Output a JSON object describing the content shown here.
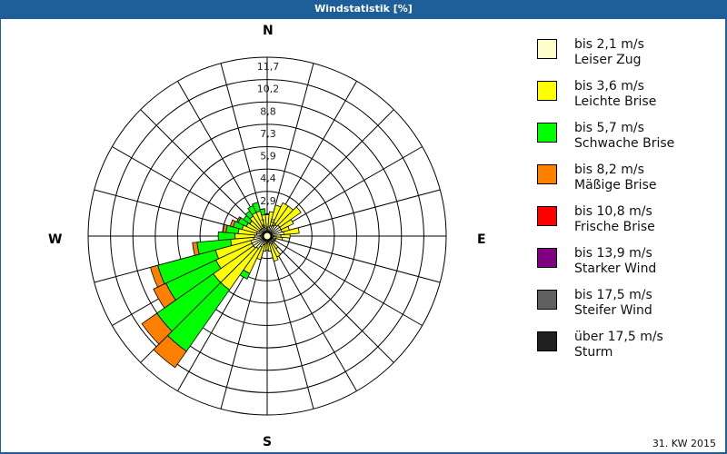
{
  "window": {
    "title": "Windstatistik [%]"
  },
  "compass": {
    "north": "N",
    "east": "E",
    "south": "S",
    "west": "W"
  },
  "footer": {
    "period": "31. KW 2015"
  },
  "legend": [
    {
      "range": "bis 2,1 m/s",
      "name": "Leiser Zug",
      "color": "#ffffcc"
    },
    {
      "range": "bis 3,6 m/s",
      "name": "Leichte Brise",
      "color": "#ffff00"
    },
    {
      "range": "bis 5,7 m/s",
      "name": "Schwache Brise",
      "color": "#00ff00"
    },
    {
      "range": "bis 8,2 m/s",
      "name": "Mäßige Brise",
      "color": "#ff8000"
    },
    {
      "range": "bis 10,8 m/s",
      "name": "Frische Brise",
      "color": "#ff0000"
    },
    {
      "range": "bis 13,9 m/s",
      "name": "Starker Wind",
      "color": "#800080"
    },
    {
      "range": "bis 17,5 m/s",
      "name": "Steifer Wind",
      "color": "#606060"
    },
    {
      "range": "über 17,5 m/s",
      "name": "Sturm",
      "color": "#202020"
    }
  ],
  "chart_data": {
    "type": "windrose",
    "title": "Windstatistik [%]",
    "subtitle": "31. KW 2015",
    "unit": "%",
    "radial_ticks": [
      "1,5",
      "2,9",
      "4,4",
      "5,9",
      "7,3",
      "8,8",
      "10,2",
      "11,7"
    ],
    "radial_max": 11.7,
    "sector_width_deg": 10,
    "series_names": [
      "bis 2,1 m/s",
      "bis 3,6 m/s",
      "bis 5,7 m/s",
      "bis 8,2 m/s",
      "bis 10,8 m/s",
      "bis 13,9 m/s",
      "bis 17,5 m/s",
      "über 17,5 m/s"
    ],
    "sectors": [
      {
        "dir": 0,
        "values": [
          0.6,
          0.8,
          0,
          0,
          0,
          0,
          0,
          0
        ]
      },
      {
        "dir": 10,
        "values": [
          0.6,
          1.0,
          0,
          0,
          0,
          0,
          0,
          0
        ]
      },
      {
        "dir": 20,
        "values": [
          0.7,
          1.4,
          0,
          0,
          0,
          0,
          0,
          0
        ]
      },
      {
        "dir": 30,
        "values": [
          0.8,
          1.6,
          0,
          0,
          0,
          0,
          0,
          0
        ]
      },
      {
        "dir": 40,
        "values": [
          0.9,
          1.5,
          0,
          0,
          0,
          0,
          0,
          0
        ]
      },
      {
        "dir": 50,
        "values": [
          1.0,
          1.7,
          0,
          0,
          0,
          0,
          0,
          0
        ]
      },
      {
        "dir": 60,
        "values": [
          1.0,
          0.9,
          0,
          0,
          0,
          0,
          0,
          0
        ]
      },
      {
        "dir": 70,
        "values": [
          1.0,
          0.5,
          0,
          0,
          0,
          0,
          0,
          0
        ]
      },
      {
        "dir": 80,
        "values": [
          1.1,
          1.0,
          0,
          0,
          0,
          0,
          0,
          0
        ]
      },
      {
        "dir": 90,
        "values": [
          0.9,
          0.6,
          0,
          0,
          0,
          0,
          0,
          0
        ]
      },
      {
        "dir": 100,
        "values": [
          0.6,
          0.4,
          0,
          0,
          0,
          0,
          0,
          0
        ]
      },
      {
        "dir": 110,
        "values": [
          0.4,
          0.2,
          0,
          0,
          0,
          0,
          0,
          0
        ]
      },
      {
        "dir": 120,
        "values": [
          0.3,
          0.2,
          0,
          0,
          0,
          0,
          0,
          0
        ]
      },
      {
        "dir": 130,
        "values": [
          0.3,
          0.3,
          0,
          0,
          0,
          0,
          0,
          0
        ]
      },
      {
        "dir": 140,
        "values": [
          0.5,
          0.5,
          0,
          0,
          0,
          0,
          0,
          0
        ]
      },
      {
        "dir": 150,
        "values": [
          0.6,
          0.9,
          0,
          0,
          0,
          0,
          0,
          0
        ]
      },
      {
        "dir": 160,
        "values": [
          0.5,
          1.2,
          0,
          0,
          0,
          0,
          0,
          0
        ]
      },
      {
        "dir": 170,
        "values": [
          0.4,
          0.6,
          0,
          0,
          0,
          0,
          0,
          0
        ]
      },
      {
        "dir": 180,
        "values": [
          0.4,
          0.5,
          0,
          0,
          0,
          0,
          0,
          0
        ]
      },
      {
        "dir": 190,
        "values": [
          0.5,
          0.5,
          0,
          0,
          0,
          0,
          0,
          0
        ]
      },
      {
        "dir": 200,
        "values": [
          0.6,
          1.0,
          0,
          0,
          0,
          0,
          0,
          0
        ]
      },
      {
        "dir": 210,
        "values": [
          0.8,
          1.9,
          0.4,
          0,
          0,
          0,
          0,
          0
        ]
      },
      {
        "dir": 220,
        "values": [
          1.0,
          3.3,
          4.9,
          1.3,
          0,
          0,
          0,
          0
        ]
      },
      {
        "dir": 230,
        "values": [
          1.1,
          3.2,
          4.5,
          1.2,
          0,
          0,
          0,
          0
        ]
      },
      {
        "dir": 240,
        "values": [
          1.1,
          2.6,
          3.6,
          0.9,
          0,
          0,
          0,
          0
        ]
      },
      {
        "dir": 250,
        "values": [
          1.1,
          2.4,
          3.9,
          0.5,
          0,
          0,
          0,
          0
        ]
      },
      {
        "dir": 260,
        "values": [
          0.9,
          1.5,
          2.2,
          0.3,
          0,
          0,
          0,
          0
        ]
      },
      {
        "dir": 270,
        "values": [
          0.8,
          1.3,
          1.1,
          0,
          0,
          0,
          0,
          0
        ]
      },
      {
        "dir": 280,
        "values": [
          0.7,
          1.2,
          0.8,
          0.2,
          0,
          0,
          0,
          0
        ]
      },
      {
        "dir": 290,
        "values": [
          0.7,
          1.0,
          0.6,
          0.2,
          0,
          0,
          0,
          0
        ]
      },
      {
        "dir": 300,
        "values": [
          0.6,
          0.9,
          0.6,
          0.1,
          0,
          0,
          0,
          0
        ]
      },
      {
        "dir": 310,
        "values": [
          0.6,
          0.8,
          0.5,
          0,
          0,
          0,
          0,
          0
        ]
      },
      {
        "dir": 320,
        "values": [
          0.6,
          1.0,
          0.4,
          0,
          0,
          0,
          0,
          0
        ]
      },
      {
        "dir": 330,
        "values": [
          0.6,
          1.1,
          0.5,
          0,
          0,
          0,
          0,
          0
        ]
      },
      {
        "dir": 340,
        "values": [
          0.6,
          1.1,
          0.6,
          0,
          0,
          0,
          0,
          0
        ]
      },
      {
        "dir": 350,
        "values": [
          0.5,
          0.9,
          0.4,
          0,
          0,
          0,
          0,
          0
        ]
      }
    ],
    "colors": [
      "#ffffcc",
      "#ffff00",
      "#00ff00",
      "#ff8000",
      "#ff0000",
      "#800080",
      "#606060",
      "#202020"
    ],
    "grid": {
      "rings": 8,
      "spokes": 24
    },
    "legend_position": "right"
  }
}
